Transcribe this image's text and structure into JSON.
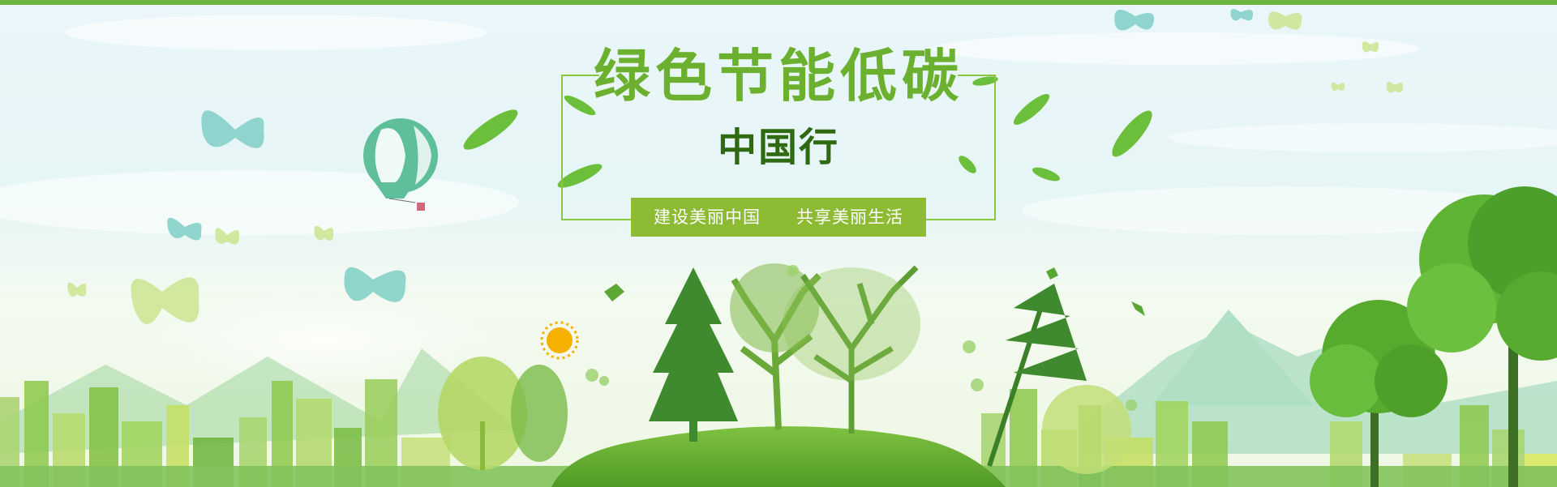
{
  "banner": {
    "title": "绿色节能低碳",
    "subtitle": "中国行",
    "slogan": "建设美丽中国　　共享美丽生活"
  },
  "colors": {
    "accent": "#6cb33f",
    "title": "#6bb02e",
    "subtitle": "#2f6a12",
    "slogan_bg": "#8dbb33",
    "slogan_text": "#ffffff"
  },
  "icons": [
    "hot-air-balloon-icon",
    "butterfly-icon",
    "leaf-icon",
    "sun-icon",
    "tree-icon",
    "bird-icon"
  ]
}
